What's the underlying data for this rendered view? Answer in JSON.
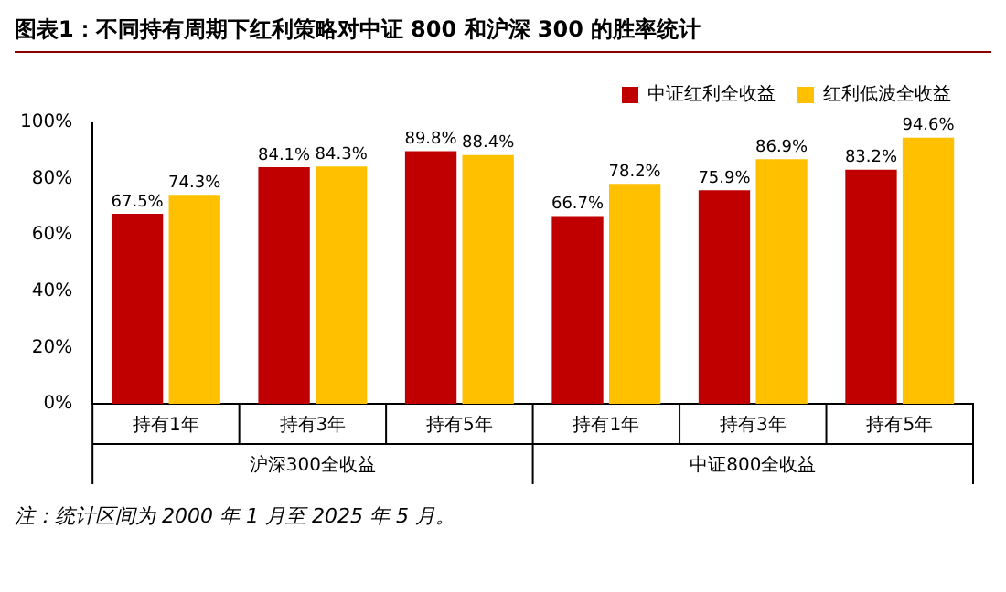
{
  "chart_data": {
    "type": "bar",
    "title": "图表1：不同持有周期下红利策略对中证 800 和沪深 300 的胜率统计",
    "categories": [
      "持有1年",
      "持有3年",
      "持有5年",
      "持有1年",
      "持有3年",
      "持有5年"
    ],
    "series": [
      {
        "name": "中证红利全收益",
        "color": "#c00000",
        "values": [
          67.5,
          84.1,
          89.8,
          66.7,
          75.9,
          83.2
        ],
        "value_labels": [
          "67.5%",
          "84.1%",
          "89.8%",
          "66.7%",
          "75.9%",
          "83.2%"
        ]
      },
      {
        "name": "红利低波全收益",
        "color": "#ffc000",
        "values": [
          74.3,
          84.3,
          88.4,
          78.2,
          86.9,
          94.6
        ],
        "value_labels": [
          "74.3%",
          "84.3%",
          "88.4%",
          "78.2%",
          "86.9%",
          "94.6%"
        ]
      }
    ],
    "ylim": [
      0,
      100
    ],
    "yticks": [
      {
        "value": 0,
        "label": "0%"
      },
      {
        "value": 20,
        "label": "20%"
      },
      {
        "value": 40,
        "label": "40%"
      },
      {
        "value": 60,
        "label": "60%"
      },
      {
        "value": 80,
        "label": "80%"
      },
      {
        "value": 100,
        "label": "100%"
      }
    ],
    "grid": false,
    "legend": "top right",
    "annotations": [
      "沪深300全收益",
      "中证800全收益",
      "注：统计区间为 2000 年 1 月至 2025 年 5 月。"
    ]
  }
}
